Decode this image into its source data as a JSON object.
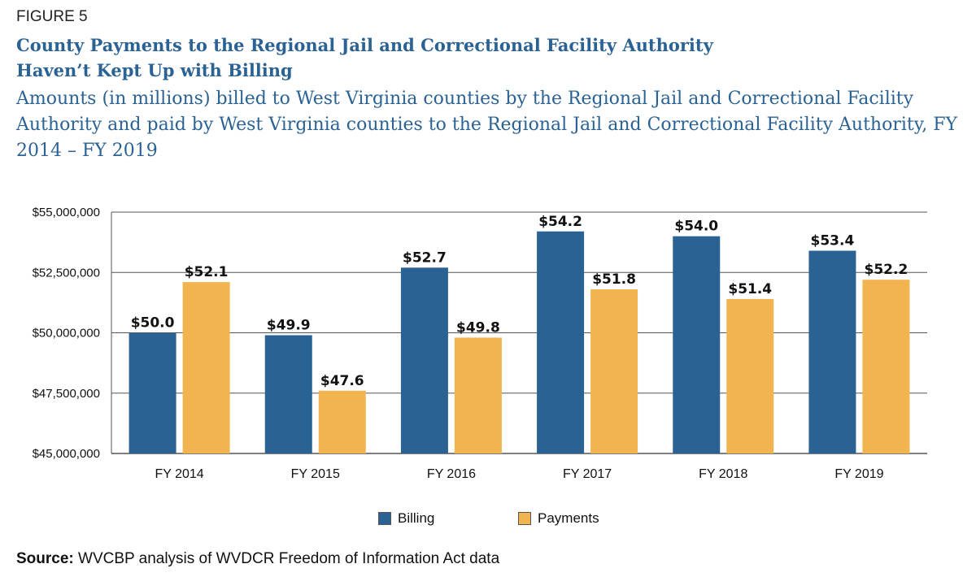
{
  "figure_label": "FIGURE 5",
  "title_line1": "County Payments to the Regional Jail and Correctional Facility Authority",
  "title_line2": "Haven’t Kept Up with Billing",
  "subtitle": "Amounts (in millions) billed to West Virginia counties by the Regional Jail and Correctional Facility Authority and paid by West Virginia counties to the Regional Jail and Correctional Facility Authority, FY 2014 – FY 2019",
  "source_label": "Source:",
  "source_text": "WVCBP analysis of WVDCR Freedom of Information Act data",
  "colors": {
    "billing": "#2b6294",
    "payments": "#f2b44f",
    "grid": "#555555"
  },
  "chart_data": {
    "type": "bar",
    "categories": [
      "FY 2014",
      "FY 2015",
      "FY 2016",
      "FY 2017",
      "FY 2018",
      "FY 2019"
    ],
    "series": [
      {
        "name": "Billing",
        "values": [
          50.0,
          49.9,
          52.7,
          54.2,
          54.0,
          53.4
        ],
        "labels": [
          "$50.0",
          "$49.9",
          "$52.7",
          "$54.2",
          "$54.0",
          "$53.4"
        ]
      },
      {
        "name": "Payments",
        "values": [
          52.1,
          47.6,
          49.8,
          51.8,
          51.4,
          52.2
        ],
        "labels": [
          "$52.1",
          "$47.6",
          "$49.8",
          "$51.8",
          "$51.4",
          "$52.2"
        ]
      }
    ],
    "ylim": [
      45000000,
      55000000
    ],
    "yticks": [
      45000000,
      47500000,
      50000000,
      52500000,
      55000000
    ],
    "ytick_labels": [
      "$45,000,000",
      "$47,500,000",
      "$50,000,000",
      "$52,500,000",
      "$55,000,000"
    ],
    "grid": true,
    "legend_position": "bottom-center"
  }
}
